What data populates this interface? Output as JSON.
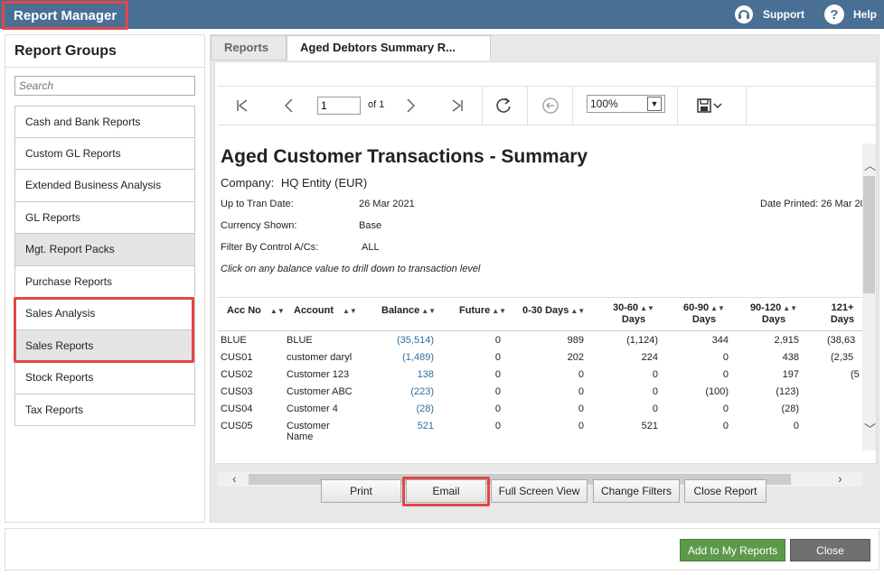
{
  "header": {
    "app_title": "Report Manager",
    "support_label": "Support",
    "help_label": "Help",
    "help_glyph": "?"
  },
  "sidebar": {
    "title": "Report Groups",
    "search_placeholder": "Search",
    "items": [
      {
        "label": "Cash and Bank Reports"
      },
      {
        "label": "Custom GL Reports"
      },
      {
        "label": "Extended Business Analysis"
      },
      {
        "label": "GL Reports"
      },
      {
        "label": "Mgt. Report Packs"
      },
      {
        "label": "Purchase Reports"
      },
      {
        "label": "Sales Analysis"
      },
      {
        "label": "Sales Reports"
      },
      {
        "label": "Stock Reports"
      },
      {
        "label": "Tax Reports"
      }
    ]
  },
  "tabs": [
    {
      "label": "Reports"
    },
    {
      "label": "Aged Debtors Summary R..."
    }
  ],
  "toolbar": {
    "page_value": "1",
    "of_label": "of 1",
    "zoom_value": "100%"
  },
  "report": {
    "title": "Aged Customer Transactions - Summary",
    "company_label": "Company:",
    "company_value": "HQ Entity (EUR)",
    "up_to_label": "Up to Tran Date:",
    "up_to_value": "26 Mar 2021",
    "date_printed": "Date Printed: 26 Mar 20",
    "currency_label": "Currency Shown:",
    "currency_value": "Base",
    "filter_label": "Filter By Control A/Cs:",
    "filter_value": "ALL",
    "note": "Click on any balance value to drill down to transaction level",
    "columns": {
      "acc_no": "Acc No",
      "account": "Account",
      "balance": "Balance",
      "future": "Future",
      "d0_30": "0-30 Days",
      "d30_60_a": "30-60",
      "d30_60_b": "Days",
      "d60_90_a": "60-90",
      "d60_90_b": "Days",
      "d90_120_a": "90-120",
      "d90_120_b": "Days",
      "d121_a": "121+",
      "d121_b": "Days"
    },
    "rows": [
      {
        "acc": "BLUE",
        "account": "BLUE",
        "account2": "",
        "balance": "(35,514)",
        "future": "0",
        "d0_30": "989",
        "d30_60": "(1,124)",
        "d60_90": "344",
        "d90_120": "2,915",
        "d121": "(38,63"
      },
      {
        "acc": "CUS01",
        "account": "customer daryl",
        "account2": "",
        "balance": "(1,489)",
        "future": "0",
        "d0_30": "202",
        "d30_60": "224",
        "d60_90": "0",
        "d90_120": "438",
        "d121": "(2,35"
      },
      {
        "acc": "CUS02",
        "account": "Customer 123",
        "account2": "",
        "balance": "138",
        "future": "0",
        "d0_30": "0",
        "d30_60": "0",
        "d60_90": "0",
        "d90_120": "197",
        "d121": "(5"
      },
      {
        "acc": "CUS03",
        "account": "Customer ABC",
        "account2": "",
        "balance": "(223)",
        "future": "0",
        "d0_30": "0",
        "d30_60": "0",
        "d60_90": "(100)",
        "d90_120": "(123)",
        "d121": ""
      },
      {
        "acc": "CUS04",
        "account": "Customer 4",
        "account2": "",
        "balance": "(28)",
        "future": "0",
        "d0_30": "0",
        "d30_60": "0",
        "d60_90": "0",
        "d90_120": "(28)",
        "d121": ""
      },
      {
        "acc": "CUS05",
        "account": "Customer",
        "account2": "Name",
        "balance": "521",
        "future": "0",
        "d0_30": "0",
        "d30_60": "521",
        "d60_90": "0",
        "d90_120": "0",
        "d121": ""
      }
    ]
  },
  "actions": {
    "print": "Print",
    "email": "Email",
    "full_screen": "Full Screen View",
    "change_filters": "Change Filters",
    "close_report": "Close Report"
  },
  "footer": {
    "add_to_my_reports": "Add to My Reports",
    "close": "Close"
  },
  "colors": {
    "header_bg": "#4a6f94",
    "highlight": "#e04848",
    "link": "#2a6fa0",
    "green_button": "#5c9a4a"
  }
}
